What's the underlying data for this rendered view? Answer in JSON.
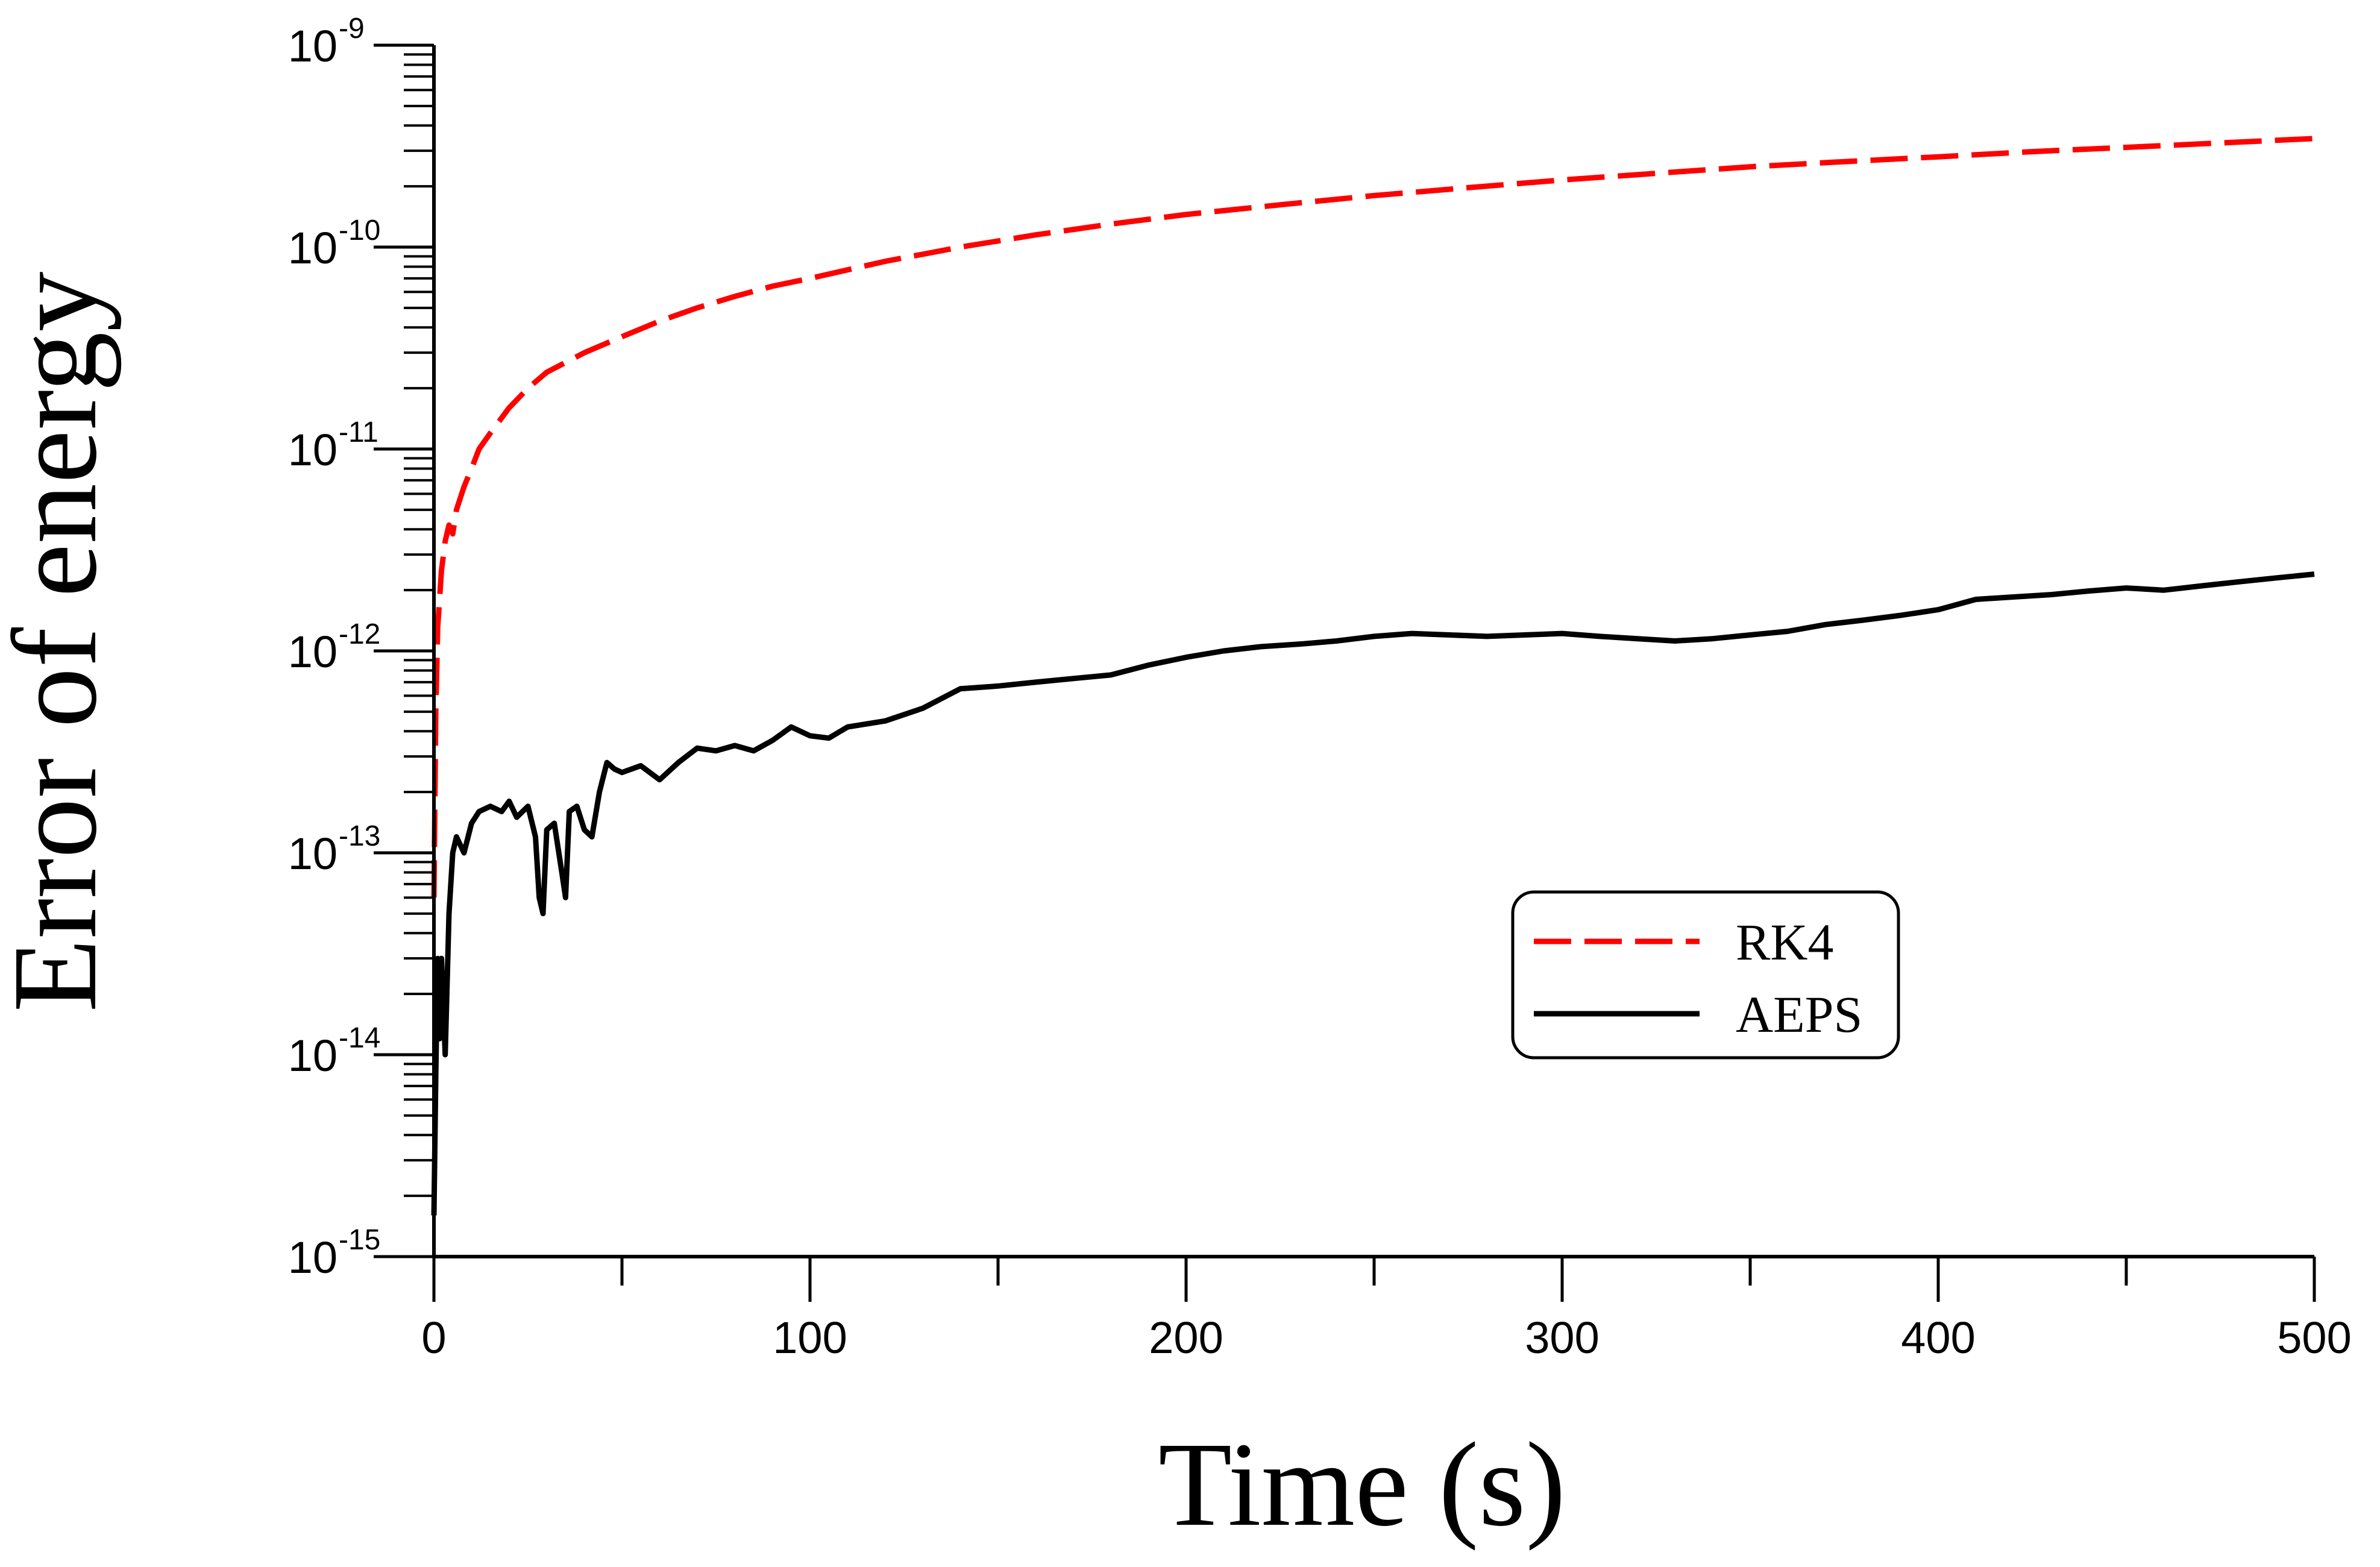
{
  "chart_data": {
    "type": "line",
    "title": "",
    "xlabel": "Time (s)",
    "ylabel": "Error of energy",
    "x_scale": "linear",
    "y_scale": "log",
    "xlim": [
      0,
      500
    ],
    "ylim": [
      1e-15,
      1e-09
    ],
    "x_ticks": [
      0,
      100,
      200,
      300,
      400,
      500
    ],
    "x_tick_labels": [
      "0",
      "100",
      "200",
      "300",
      "400",
      "500"
    ],
    "y_ticks": [
      {
        "mantissa": "10",
        "exponent": "-15",
        "value": 1e-15
      },
      {
        "mantissa": "10",
        "exponent": "-14",
        "value": 1e-14
      },
      {
        "mantissa": "10",
        "exponent": "-13",
        "value": 1e-13
      },
      {
        "mantissa": "10",
        "exponent": "-12",
        "value": 1e-12
      },
      {
        "mantissa": "10",
        "exponent": "-11",
        "value": 1e-11
      },
      {
        "mantissa": "10",
        "exponent": "-10",
        "value": 1e-10
      },
      {
        "mantissa": "10",
        "exponent": "-9",
        "value": 1e-09
      }
    ],
    "grid": false,
    "legend_position": "lower-right",
    "series": [
      {
        "name": "RK4",
        "color": "#ff0000",
        "style": "dashed",
        "x": [
          0,
          0.5,
          1,
          2,
          3,
          4,
          5,
          6,
          8,
          10,
          12,
          15,
          20,
          25,
          30,
          40,
          50,
          60,
          70,
          80,
          90,
          100,
          120,
          140,
          160,
          180,
          200,
          225,
          250,
          275,
          300,
          325,
          350,
          375,
          400,
          425,
          450,
          475,
          500
        ],
        "values": [
          6e-14,
          5e-13,
          1.3e-12,
          2.5e-12,
          3.5e-12,
          4.2e-12,
          3.8e-12,
          5e-12,
          6.5e-12,
          8e-12,
          1e-11,
          1.2e-11,
          1.6e-11,
          2e-11,
          2.4e-11,
          3e-11,
          3.6e-11,
          4.3e-11,
          5e-11,
          5.7e-11,
          6.4e-11,
          7e-11,
          8.5e-11,
          1e-10,
          1.15e-10,
          1.3e-10,
          1.45e-10,
          1.62e-10,
          1.8e-10,
          1.97e-10,
          2.15e-10,
          2.32e-10,
          2.5e-10,
          2.65e-10,
          2.8e-10,
          2.97e-10,
          3.12e-10,
          3.28e-10,
          3.45e-10
        ]
      },
      {
        "name": "AEPS",
        "color": "#000000",
        "style": "solid",
        "x": [
          0,
          0.5,
          1,
          1.5,
          2,
          3,
          4,
          5,
          6,
          8,
          10,
          12,
          15,
          18,
          20,
          22,
          25,
          27,
          28,
          29,
          30,
          32,
          34,
          35,
          36,
          38,
          40,
          42,
          44,
          46,
          48,
          50,
          55,
          60,
          65,
          70,
          75,
          80,
          85,
          90,
          95,
          100,
          105,
          110,
          120,
          130,
          140,
          150,
          160,
          170,
          180,
          190,
          200,
          210,
          220,
          230,
          240,
          250,
          260,
          270,
          280,
          290,
          300,
          310,
          320,
          330,
          340,
          350,
          360,
          370,
          380,
          390,
          400,
          410,
          420,
          430,
          440,
          450,
          460,
          470,
          480,
          490,
          500
        ],
        "values": [
          1.6e-15,
          8e-15,
          3e-14,
          1.2e-14,
          3e-14,
          1e-14,
          5e-14,
          1e-13,
          1.2e-13,
          1e-13,
          1.4e-13,
          1.6e-13,
          1.7e-13,
          1.6e-13,
          1.8e-13,
          1.5e-13,
          1.7e-13,
          1.2e-13,
          6e-14,
          5e-14,
          1.3e-13,
          1.4e-13,
          8e-14,
          6e-14,
          1.6e-13,
          1.7e-13,
          1.3e-13,
          1.2e-13,
          2e-13,
          2.8e-13,
          2.6e-13,
          2.5e-13,
          2.7e-13,
          2.3e-13,
          2.8e-13,
          3.3e-13,
          3.2e-13,
          3.4e-13,
          3.2e-13,
          3.6e-13,
          4.2e-13,
          3.8e-13,
          3.7e-13,
          4.2e-13,
          4.5e-13,
          5.2e-13,
          6.5e-13,
          6.7e-13,
          7e-13,
          7.3e-13,
          7.6e-13,
          8.5e-13,
          9.3e-13,
          1e-12,
          1.05e-12,
          1.08e-12,
          1.12e-12,
          1.18e-12,
          1.22e-12,
          1.2e-12,
          1.18e-12,
          1.2e-12,
          1.22e-12,
          1.18e-12,
          1.15e-12,
          1.12e-12,
          1.15e-12,
          1.2e-12,
          1.25e-12,
          1.35e-12,
          1.42e-12,
          1.5e-12,
          1.6e-12,
          1.8e-12,
          1.85e-12,
          1.9e-12,
          1.98e-12,
          2.05e-12,
          2e-12,
          2.1e-12,
          2.2e-12,
          2.3e-12,
          2.4e-12
        ]
      }
    ]
  }
}
